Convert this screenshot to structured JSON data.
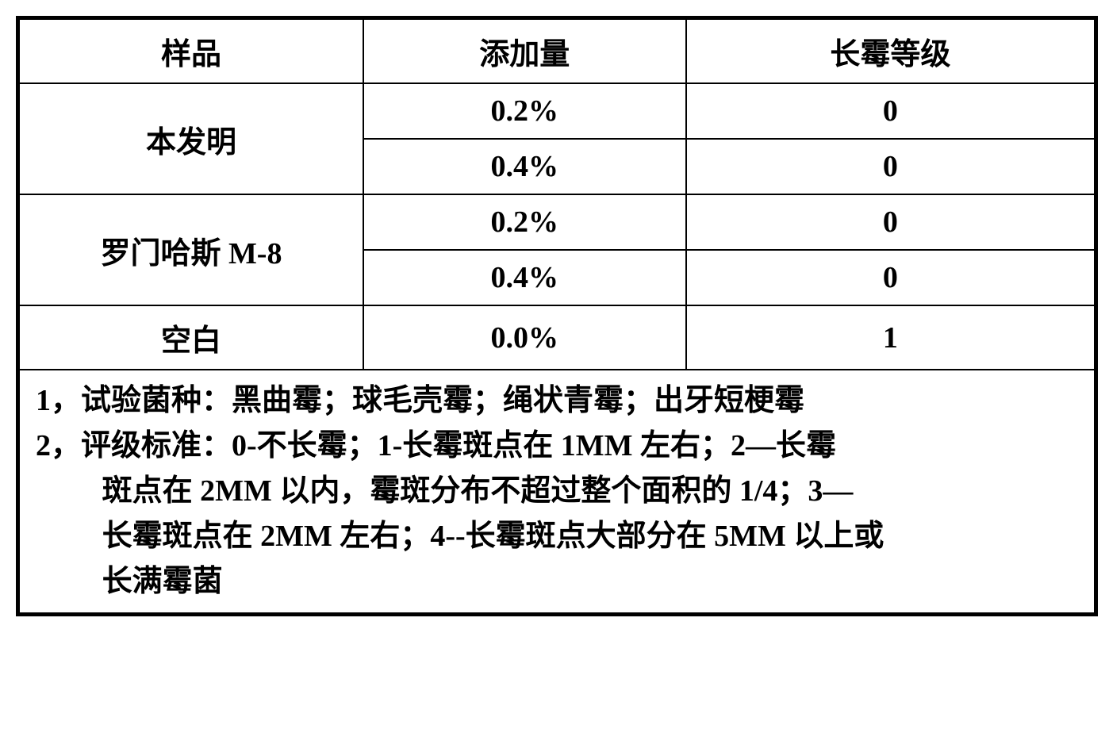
{
  "table": {
    "columns": [
      "样品",
      "添加量",
      "长霉等级"
    ],
    "rows": [
      {
        "sample": "本发明",
        "amounts": [
          "0.2%",
          "0.4%"
        ],
        "grades": [
          "0",
          "0"
        ]
      },
      {
        "sample": "罗门哈斯 M-8",
        "amounts": [
          "0.2%",
          "0.4%"
        ],
        "grades": [
          "0",
          "0"
        ]
      },
      {
        "sample": "空白",
        "amounts": [
          "0.0%"
        ],
        "grades": [
          "1"
        ]
      }
    ],
    "col_widths_pct": [
      32,
      30,
      38
    ],
    "border_color": "#000000",
    "background_color": "#ffffff",
    "font_size_pt": 28,
    "font_weight": "bold",
    "text_color": "#000000"
  },
  "footer": {
    "line1": "1，试验菌种：黑曲霉；球毛壳霉；绳状青霉；出牙短梗霉",
    "line2_a": "2，评级标准：0-不长霉；1-长霉斑点在 1MM 左右；2—长霉",
    "line2_b": "斑点在 2MM 以内，霉斑分布不超过整个面积的 1/4；3—",
    "line2_c": "长霉斑点在 2MM 左右；4--长霉斑点大部分在 5MM 以上或",
    "line2_d": "长满霉菌"
  }
}
